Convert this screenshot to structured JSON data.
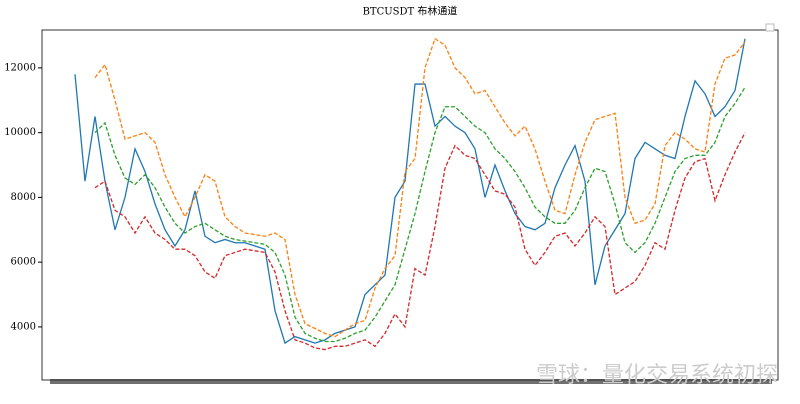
{
  "chart_data": {
    "type": "line",
    "title": "BTCUSDT 布林通道",
    "watermark": "雪球：量化交易系统初探",
    "ylim": [
      2360,
      13170
    ],
    "yticks": [
      4000,
      6000,
      8000,
      10000,
      12000
    ],
    "series": [
      {
        "color": "#1f77b4",
        "dashed": false,
        "values": [
          11800,
          8500,
          10500,
          8500,
          7000,
          8000,
          9500,
          8800,
          7800,
          7000,
          6500,
          7000,
          8200,
          6800,
          6600,
          6700,
          6600,
          6600,
          6500,
          6400,
          4500,
          3500,
          3700,
          3600,
          3500,
          3600,
          3800,
          3900,
          4000,
          5000,
          5300,
          5600,
          8000,
          8500,
          11500,
          11500,
          10200,
          10500,
          10200,
          10000,
          9500,
          8000,
          9000,
          8200,
          7500,
          7100,
          7000,
          7200,
          8300,
          9000,
          9600,
          8500,
          5300,
          6500,
          7000,
          7500,
          9200,
          9700,
          9500,
          9300,
          9200,
          10500,
          11600,
          11200,
          10500,
          10800,
          11300,
          12900
        ]
      },
      {
        "color": "#ff7f0e",
        "dashed": true,
        "values": [
          null,
          null,
          11700,
          12100,
          11000,
          9800,
          9900,
          10000,
          9700,
          8700,
          8000,
          7400,
          8000,
          8700,
          8500,
          7400,
          7100,
          6900,
          6850,
          6800,
          6900,
          6700,
          5000,
          4100,
          3950,
          3800,
          3700,
          3900,
          4100,
          4200,
          5200,
          5800,
          6200,
          8800,
          9200,
          12000,
          12900,
          12700,
          12000,
          11700,
          11200,
          11300,
          10800,
          10300,
          9900,
          10200,
          9500,
          8500,
          7600,
          7500,
          8700,
          9700,
          10400,
          10500,
          10600,
          8000,
          7200,
          7300,
          7800,
          9600,
          10000,
          9800,
          9500,
          9400,
          11500,
          12300,
          12400,
          12800
        ]
      },
      {
        "color": "#2ca02c",
        "dashed": true,
        "values": [
          null,
          null,
          10000,
          10300,
          9300,
          8600,
          8400,
          8700,
          8300,
          7700,
          7200,
          6900,
          7100,
          7200,
          7000,
          6800,
          6700,
          6650,
          6600,
          6550,
          6300,
          5600,
          4300,
          3800,
          3650,
          3550,
          3550,
          3650,
          3800,
          3900,
          4300,
          4800,
          5300,
          6400,
          7500,
          8800,
          10000,
          10800,
          10800,
          10500,
          10200,
          10000,
          9500,
          9200,
          8800,
          8300,
          7700,
          7400,
          7200,
          7200,
          7600,
          8300,
          8900,
          8800,
          7800,
          6600,
          6300,
          6600,
          7200,
          8000,
          8800,
          9200,
          9300,
          9300,
          9700,
          10500,
          10900,
          11400
        ]
      },
      {
        "color": "#d62728",
        "dashed": true,
        "values": [
          null,
          null,
          8300,
          8500,
          7600,
          7400,
          6900,
          7400,
          6900,
          6700,
          6400,
          6400,
          6200,
          5700,
          5500,
          6200,
          6300,
          6400,
          6350,
          6300,
          5700,
          4500,
          3600,
          3500,
          3350,
          3300,
          3400,
          3400,
          3500,
          3600,
          3400,
          3800,
          4400,
          4000,
          5800,
          5600,
          7100,
          8900,
          9600,
          9300,
          9200,
          8700,
          8200,
          8100,
          7700,
          6400,
          5900,
          6300,
          6800,
          6900,
          6500,
          6900,
          7400,
          7100,
          5000,
          5200,
          5400,
          5900,
          6600,
          6400,
          7600,
          8600,
          9100,
          9200,
          7900,
          8700,
          9400,
          10000
        ]
      }
    ]
  }
}
